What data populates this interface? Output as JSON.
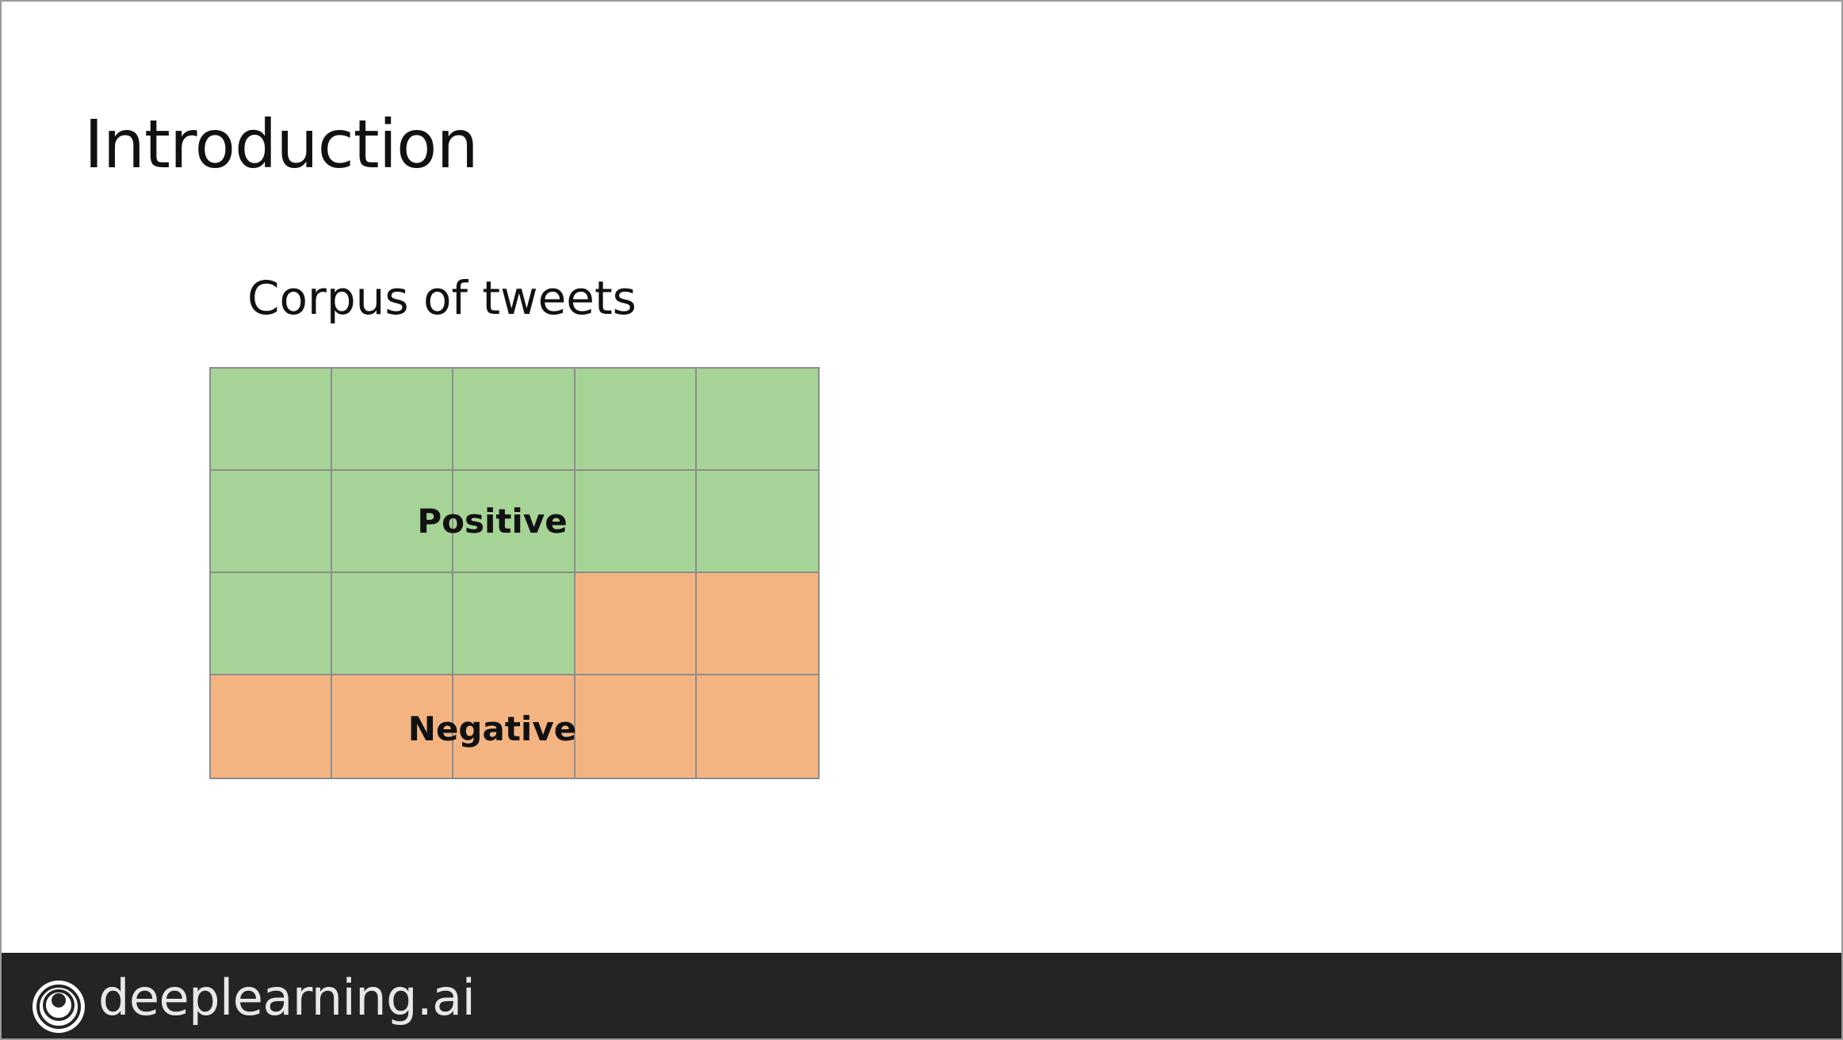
{
  "slide": {
    "title": "Introduction",
    "subtitle": "Corpus of tweets"
  },
  "diagram": {
    "rows": 4,
    "columns": 5,
    "cells": [
      "positive",
      "positive",
      "positive",
      "positive",
      "positive",
      "positive",
      "positive",
      "positive",
      "positive",
      "positive",
      "positive",
      "positive",
      "positive",
      "negative",
      "negative",
      "negative",
      "negative",
      "negative",
      "negative",
      "negative"
    ],
    "positive_label": "Positive",
    "negative_label": "Negative",
    "colors": {
      "positive": "#a6d496",
      "negative": "#f4b482",
      "cell_border": "#8d8d8d"
    }
  },
  "footer": {
    "brand": "deeplearning.ai",
    "logo_icon": "deeplearning-logo-icon",
    "background": "#242424"
  }
}
